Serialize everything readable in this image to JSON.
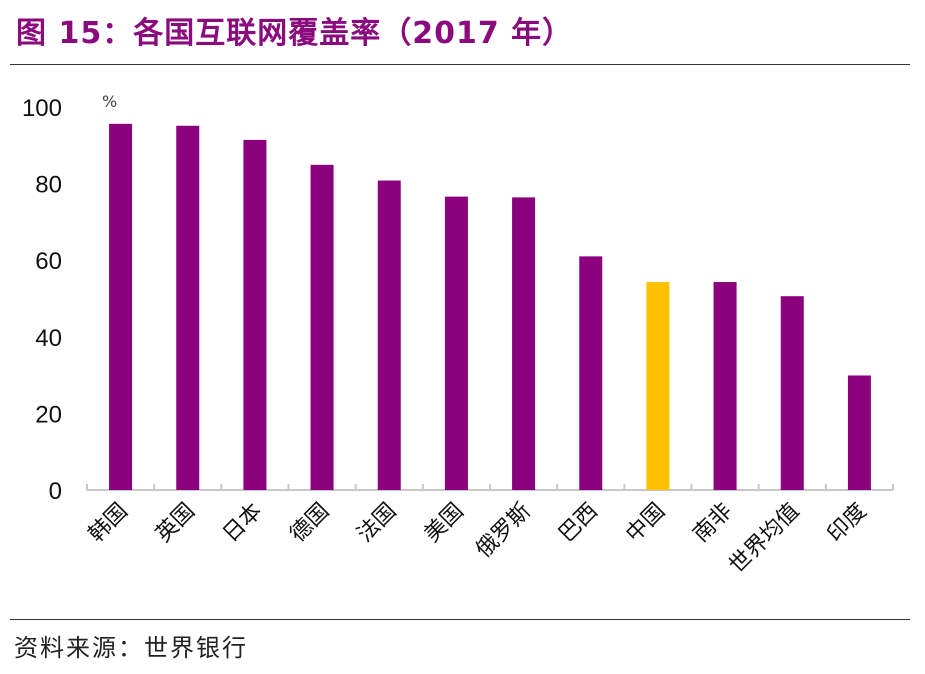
{
  "title": "图 15：各国互联网覆盖率（2017 年）",
  "source": "资料来源：世界银行",
  "colors": {
    "bar": "#8b007d",
    "highlight": "#ffc000",
    "title": "#8b0a7e",
    "axis": "#c8c8c8"
  },
  "chart_data": {
    "type": "bar",
    "title": "各国互联网覆盖率（2017 年）",
    "unit": "%",
    "ylim": [
      0,
      100
    ],
    "yticks": [
      0,
      20,
      40,
      60,
      80,
      100
    ],
    "categories": [
      "韩国",
      "英国",
      "日本",
      "德国",
      "法国",
      "美国",
      "俄罗斯",
      "巴西",
      "中国",
      "南非",
      "世界均值",
      "印度"
    ],
    "values": [
      95.6,
      95.1,
      91.4,
      84.9,
      80.8,
      76.6,
      76.4,
      61.0,
      54.3,
      54.3,
      50.6,
      29.9
    ],
    "highlight": "中国",
    "grid": false
  }
}
